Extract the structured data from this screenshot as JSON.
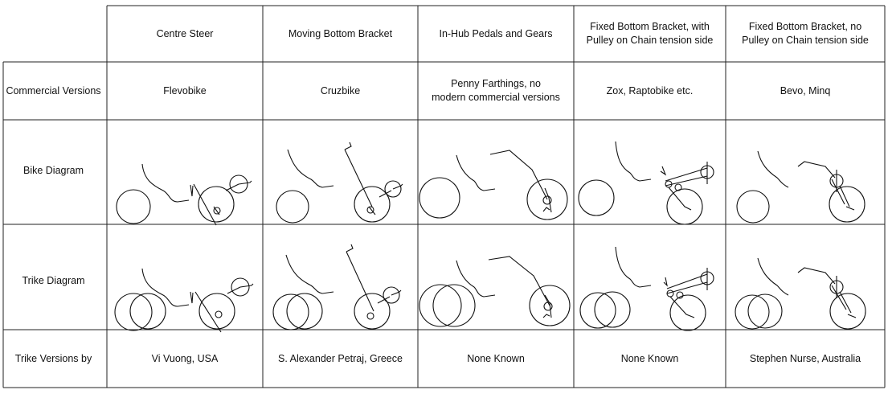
{
  "columns": [
    "Centre Steer",
    "Moving Bottom Bracket",
    "In-Hub Pedals and Gears",
    "Fixed Bottom Bracket, with\nPulley on Chain tension side",
    "Fixed Bottom Bracket, no\nPulley on Chain tension side"
  ],
  "row_labels": {
    "commercial": "Commercial Versions",
    "bike": "Bike Diagram",
    "trike": "Trike Diagram",
    "trike_versions": "Trike Versions by"
  },
  "commercial_versions": [
    "Flevobike",
    "Cruzbike",
    "Penny Farthings, no\nmodern commercial versions",
    "Zox, Raptobike etc.",
    "Bevo, Minq"
  ],
  "trike_versions": [
    "Vi Vuong, USA",
    "S. Alexander Petraj, Greece",
    "None Known",
    "None Known",
    "Stephen Nurse, Australia"
  ]
}
